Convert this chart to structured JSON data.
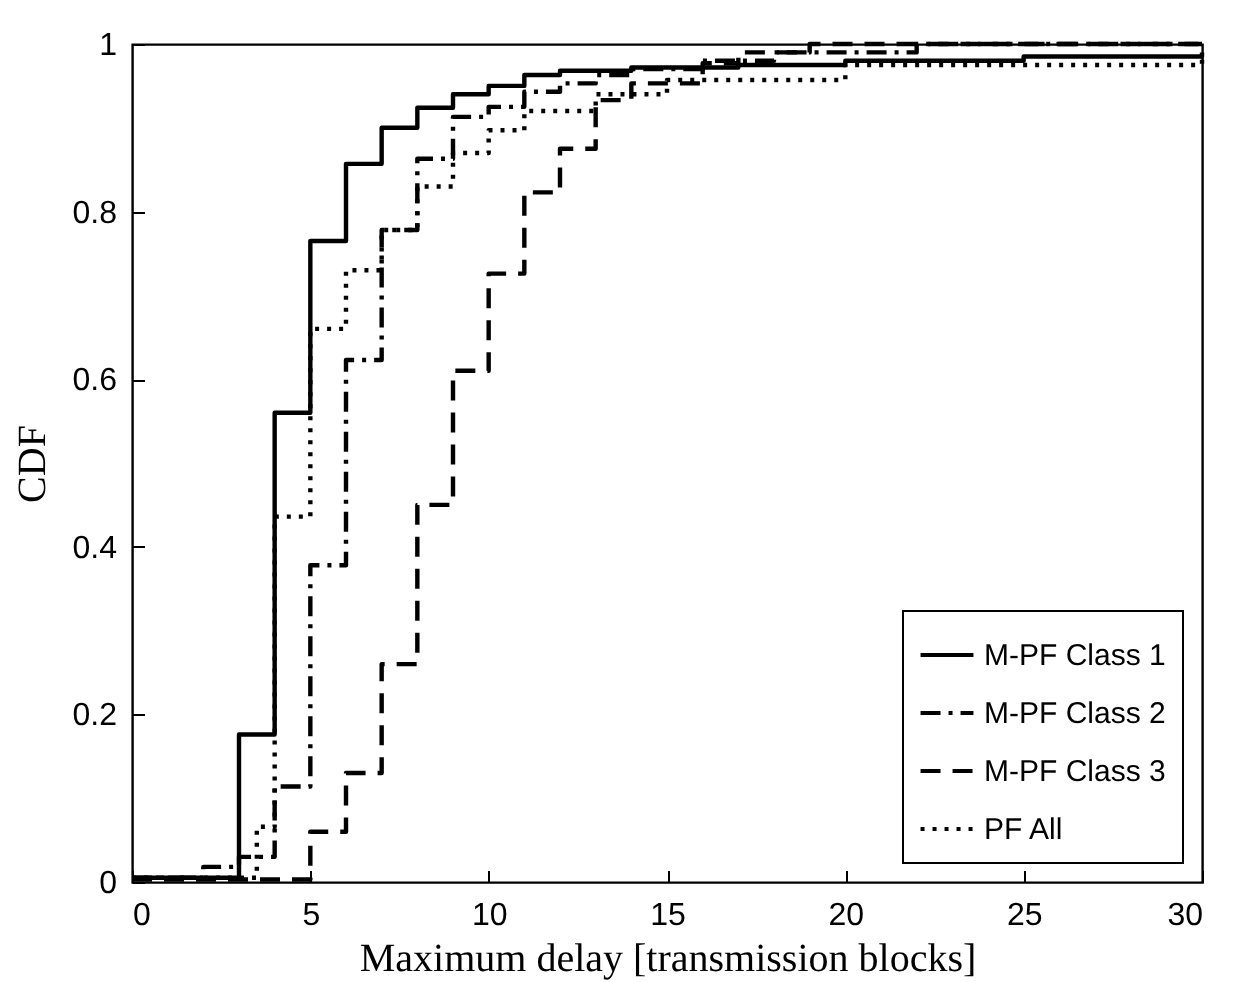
{
  "chart_data": {
    "type": "step",
    "xlabel": "Maximum delay [transmission blocks]",
    "ylabel": "CDF",
    "xlim": [
      0,
      30
    ],
    "xticks": [
      0,
      5,
      10,
      15,
      20,
      25,
      30
    ],
    "ylim": [
      0,
      1
    ],
    "yticks": [
      0,
      0.2,
      0.4,
      0.6,
      0.8,
      1
    ],
    "grid": false,
    "legend": "bottom right",
    "marker": "none",
    "series": [
      {
        "name": "M-PF Class 1",
        "color": "#000000",
        "line_style": "solid",
        "x": [
          0,
          3,
          4,
          5,
          6,
          7,
          8,
          9,
          10,
          11,
          12,
          14,
          17,
          20,
          25,
          30
        ],
        "values": [
          0.005,
          0.176,
          0.56,
          0.765,
          0.857,
          0.9,
          0.924,
          0.94,
          0.95,
          0.963,
          0.968,
          0.972,
          0.975,
          0.98,
          0.985,
          0.99
        ]
      },
      {
        "name": "M-PF Class 2",
        "color": "#000000",
        "line_style": "dashdot",
        "x": [
          0,
          2,
          3,
          4,
          5,
          6,
          7,
          8,
          9,
          10,
          11,
          12,
          13,
          14,
          16,
          18,
          22,
          30
        ],
        "values": [
          0.005,
          0.018,
          0.03,
          0.114,
          0.378,
          0.623,
          0.778,
          0.863,
          0.913,
          0.925,
          0.943,
          0.953,
          0.963,
          0.97,
          0.98,
          0.99,
          1,
          1
        ]
      },
      {
        "name": "M-PF Class 3",
        "color": "#000000",
        "line_style": "dashed",
        "x": [
          0,
          5,
          6,
          7,
          8,
          9,
          10,
          11,
          12,
          13,
          14,
          16,
          17,
          19,
          30
        ],
        "values": [
          0.003,
          0.06,
          0.13,
          0.26,
          0.45,
          0.61,
          0.726,
          0.823,
          0.875,
          0.933,
          0.953,
          0.977,
          0.99,
          1,
          1
        ]
      },
      {
        "name": "PF All",
        "color": "#000000",
        "line_style": "dotted",
        "x": [
          0,
          3.5,
          4,
          5,
          6,
          7,
          8,
          9,
          10,
          11,
          13,
          15,
          20,
          30
        ],
        "values": [
          0.005,
          0.066,
          0.436,
          0.66,
          0.73,
          0.778,
          0.83,
          0.87,
          0.897,
          0.92,
          0.94,
          0.957,
          0.975,
          0.99
        ]
      }
    ]
  }
}
